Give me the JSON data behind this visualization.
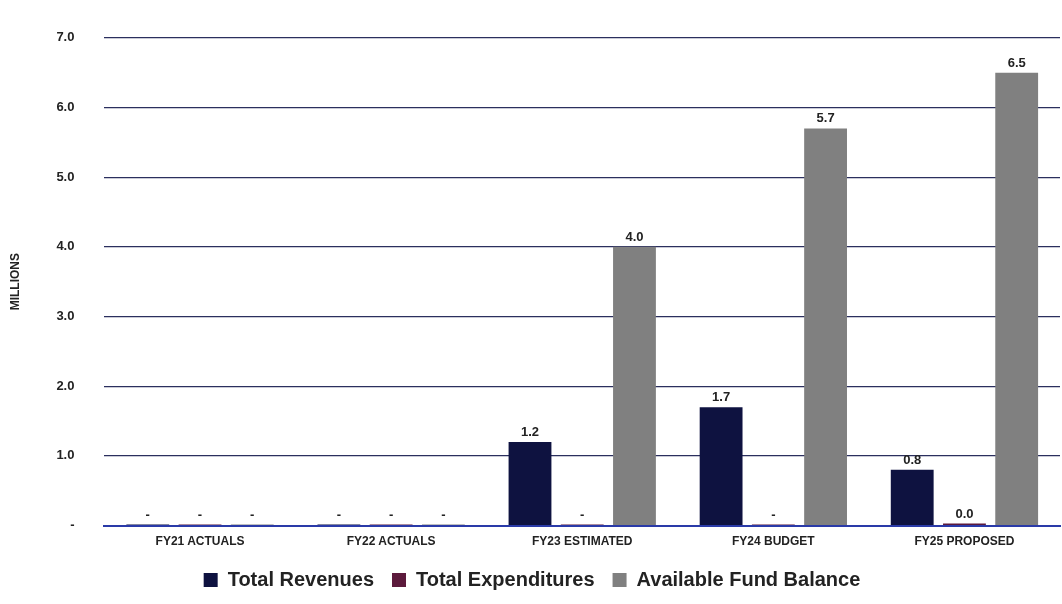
{
  "chart_data": {
    "type": "bar",
    "ylabel": "MILLIONS",
    "categories": [
      "FY21 ACTUALS",
      "FY22 ACTUALS",
      "FY23 ESTIMATED",
      "FY24 BUDGET",
      "FY25 PROPOSED"
    ],
    "series": [
      {
        "name": "Total Revenues",
        "color": "#0e1240",
        "values": [
          0,
          0,
          1.2,
          1.7,
          0.8
        ],
        "value_labels": [
          "-",
          "-",
          "1.2",
          "1.7",
          "0.8"
        ]
      },
      {
        "name": "Total Expenditures",
        "color": "#5c1a3c",
        "values": [
          0,
          0,
          0,
          0,
          0.03
        ],
        "value_labels": [
          "-",
          "-",
          "-",
          "-",
          "0.0"
        ]
      },
      {
        "name": "Available Fund Balance",
        "color": "#808080",
        "values": [
          0,
          0,
          4.0,
          5.7,
          6.5
        ],
        "value_labels": [
          "-",
          "-",
          "4.0",
          "5.7",
          "6.5"
        ]
      }
    ],
    "ylim": [
      0,
      7
    ],
    "yticks": [
      {
        "value": 0,
        "label": "-"
      },
      {
        "value": 1,
        "label": "1.0"
      },
      {
        "value": 2,
        "label": "2.0"
      },
      {
        "value": 3,
        "label": "3.0"
      },
      {
        "value": 4,
        "label": "4.0"
      },
      {
        "value": 5,
        "label": "5.0"
      },
      {
        "value": 6,
        "label": "6.0"
      },
      {
        "value": 7,
        "label": "7.0"
      }
    ],
    "grid": "y",
    "legend": "bottom"
  }
}
